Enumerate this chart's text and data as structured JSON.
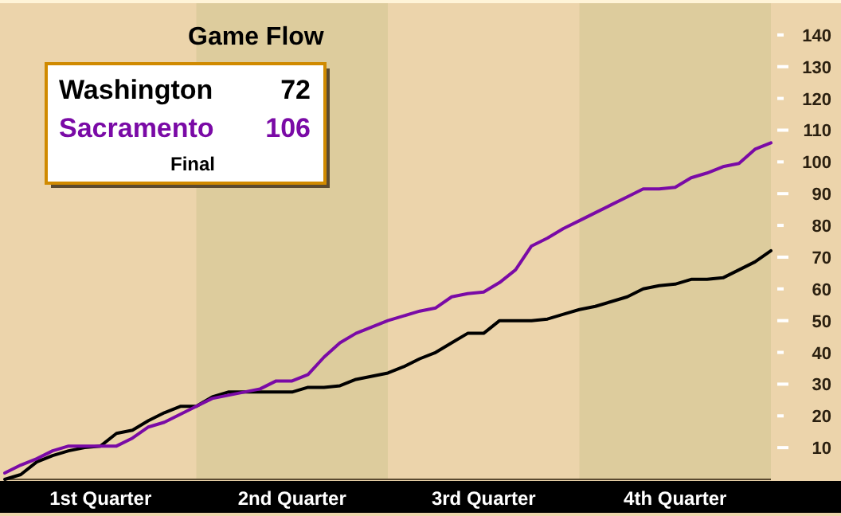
{
  "chart_data": {
    "type": "line",
    "title": "Game Flow",
    "categories": [
      null,
      null,
      null,
      null,
      null,
      null,
      "1st Quarter",
      null,
      null,
      null,
      null,
      null,
      null,
      null,
      null,
      null,
      null,
      null,
      "2nd Quarter",
      null,
      null,
      null,
      null,
      null,
      null,
      null,
      null,
      null,
      null,
      null,
      "3rd Quarter",
      null,
      null,
      null,
      null,
      null,
      null,
      null,
      null,
      null,
      null,
      null,
      "4th Quarter",
      null,
      null,
      null,
      null,
      null,
      null
    ],
    "ylim": [
      0,
      150
    ],
    "yticks": [
      10,
      20,
      30,
      40,
      50,
      60,
      70,
      80,
      90,
      100,
      110,
      120,
      130,
      140
    ],
    "legend": "top left",
    "grid": false,
    "marker": "none",
    "line_style": "solid",
    "series": [
      {
        "name": "Washington",
        "color": "#000000",
        "values": [
          0,
          1.5,
          5.5,
          7.5,
          9,
          10,
          10.5,
          14.5,
          15.5,
          18.5,
          21,
          23,
          23,
          26,
          27.5,
          27.5,
          27.5,
          27.5,
          27.5,
          29,
          29,
          29.5,
          31.5,
          32.5,
          33.5,
          35.5,
          38,
          40,
          43,
          46,
          46,
          50,
          50,
          50,
          50.5,
          52,
          53.5,
          54.5,
          56,
          57.5,
          60,
          61,
          61.5,
          63,
          63,
          63.5,
          66,
          68.5,
          72
        ]
      },
      {
        "name": "Sacramento",
        "color": "#7a0aa6",
        "values": [
          2,
          4.5,
          6.5,
          9,
          10.5,
          10.5,
          10.5,
          10.5,
          13,
          16.5,
          18,
          20.5,
          23,
          25.5,
          26.5,
          27.5,
          28.5,
          31,
          31,
          33,
          38.5,
          43,
          46,
          48,
          50,
          51.5,
          53,
          54,
          57.5,
          58.5,
          59,
          62,
          66,
          73.5,
          76,
          79,
          81.5,
          84,
          86.5,
          89,
          91.5,
          91.5,
          92,
          95,
          96.5,
          98.5,
          99.5,
          104,
          106
        ]
      }
    ],
    "annotations": [
      "72",
      "106",
      "Final"
    ]
  }
}
